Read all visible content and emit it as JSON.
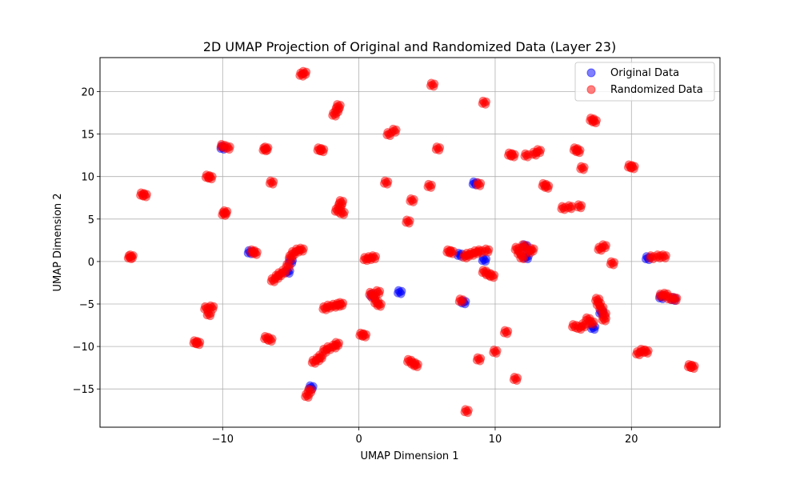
{
  "chart_data": {
    "type": "scatter",
    "title": "2D UMAP Projection of Original and Randomized Data (Layer 23)",
    "xlabel": "UMAP Dimension 1",
    "ylabel": "UMAP Dimension 2",
    "xlim": [
      -19.0,
      26.5
    ],
    "ylim": [
      -19.5,
      24.0
    ],
    "xticks": [
      -10,
      0,
      10,
      20
    ],
    "yticks": [
      -15,
      -10,
      -5,
      0,
      5,
      10,
      15,
      20
    ],
    "xtick_labels": [
      "−10",
      "0",
      "10",
      "20"
    ],
    "ytick_labels": [
      "−15",
      "−10",
      "−5",
      "0",
      "5",
      "10",
      "15",
      "20"
    ],
    "grid": true,
    "legend_position": "top-right",
    "series": [
      {
        "name": "Original Data",
        "color": "#0000ff",
        "alpha": 0.5,
        "points": [
          [
            -10,
            13.4
          ],
          [
            -8,
            1.1
          ],
          [
            -5.2,
            -1.2
          ],
          [
            -5,
            0
          ],
          [
            -3.5,
            -14.8
          ],
          [
            7.4,
            0.8
          ],
          [
            7.7,
            -4.8
          ],
          [
            8.5,
            9.2
          ],
          [
            9.2,
            0.2
          ],
          [
            12.2,
            1.8
          ],
          [
            12.3,
            0.5
          ],
          [
            17.2,
            -7.8
          ],
          [
            17.8,
            -6
          ],
          [
            21.2,
            0.4
          ],
          [
            22.2,
            -4.2
          ],
          [
            23.1,
            -4.4
          ],
          [
            3,
            -3.6
          ],
          [
            1,
            -4
          ]
        ]
      },
      {
        "name": "Randomized Data",
        "color": "#ff0000",
        "alpha": 0.5,
        "points": [
          [
            -16.8,
            0.5
          ],
          [
            -16.7,
            0.6
          ],
          [
            -15.9,
            7.9
          ],
          [
            -15.7,
            7.8
          ],
          [
            -12,
            -9.5
          ],
          [
            -11.8,
            -9.6
          ],
          [
            -11.2,
            -5.5
          ],
          [
            -11,
            -6.2
          ],
          [
            -10.8,
            -5.4
          ],
          [
            -11.1,
            10
          ],
          [
            -10.9,
            9.9
          ],
          [
            -10,
            13.6
          ],
          [
            -9.9,
            5.6
          ],
          [
            -9.8,
            5.8
          ],
          [
            -9.6,
            13.4
          ],
          [
            -7.8,
            1.2
          ],
          [
            -7.6,
            1
          ],
          [
            -6.9,
            13.2
          ],
          [
            -6.8,
            13.3
          ],
          [
            -6.8,
            -9
          ],
          [
            -6.5,
            -9.2
          ],
          [
            -6.4,
            9.3
          ],
          [
            -6.3,
            -2.2
          ],
          [
            -6,
            -1.8
          ],
          [
            -5.8,
            -1.5
          ],
          [
            -5.5,
            -1.2
          ],
          [
            -5.2,
            -0.5
          ],
          [
            -5,
            0.5
          ],
          [
            -4.8,
            1
          ],
          [
            -4.5,
            1.3
          ],
          [
            -4.2,
            1.4
          ],
          [
            -4.2,
            22
          ],
          [
            -4,
            22.2
          ],
          [
            -3.8,
            -15.8
          ],
          [
            -3.6,
            -15.2
          ],
          [
            -3.3,
            -11.8
          ],
          [
            -3,
            -11.5
          ],
          [
            -2.8,
            -11.2
          ],
          [
            -2.9,
            13.2
          ],
          [
            -2.7,
            13.1
          ],
          [
            -2.5,
            -10.5
          ],
          [
            -2.2,
            -10.2
          ],
          [
            -1.8,
            -10
          ],
          [
            -1.6,
            -9.7
          ],
          [
            -2.5,
            -5.5
          ],
          [
            -2.2,
            -5.3
          ],
          [
            -1.8,
            -5.2
          ],
          [
            -1.5,
            -5.1
          ],
          [
            -1.3,
            -5
          ],
          [
            -1.8,
            17.3
          ],
          [
            -1.6,
            17.8
          ],
          [
            -1.5,
            18.3
          ],
          [
            -1.6,
            6
          ],
          [
            -1.4,
            6.5
          ],
          [
            -1.3,
            7
          ],
          [
            -1.2,
            5.7
          ],
          [
            0.2,
            -8.6
          ],
          [
            0.4,
            -8.7
          ],
          [
            0.5,
            0.3
          ],
          [
            0.8,
            0.4
          ],
          [
            1.1,
            0.5
          ],
          [
            0.9,
            -3.8
          ],
          [
            1.1,
            -4.2
          ],
          [
            1.3,
            -4.8
          ],
          [
            1.5,
            -5.1
          ],
          [
            1.4,
            -3.6
          ],
          [
            2,
            9.3
          ],
          [
            2.2,
            15
          ],
          [
            2.6,
            15.4
          ],
          [
            3.6,
            4.7
          ],
          [
            3.7,
            -11.7
          ],
          [
            4,
            -12
          ],
          [
            4.2,
            -12.2
          ],
          [
            3.9,
            7.2
          ],
          [
            5.2,
            8.9
          ],
          [
            5.4,
            20.8
          ],
          [
            5.8,
            13.3
          ],
          [
            6.6,
            1.2
          ],
          [
            6.8,
            1.1
          ],
          [
            7.5,
            -4.6
          ],
          [
            7.8,
            0.6
          ],
          [
            8,
            0.8
          ],
          [
            7.9,
            -17.6
          ],
          [
            8.3,
            0.9
          ],
          [
            8.6,
            1.1
          ],
          [
            8.8,
            -11.5
          ],
          [
            8.8,
            9.1
          ],
          [
            8.9,
            1.2
          ],
          [
            9.2,
            -1.2
          ],
          [
            9.4,
            1.3
          ],
          [
            9.5,
            -1.5
          ],
          [
            9.8,
            -1.7
          ],
          [
            9.2,
            18.7
          ],
          [
            10,
            -10.6
          ],
          [
            10.8,
            -8.3
          ],
          [
            11.1,
            12.6
          ],
          [
            11.3,
            12.5
          ],
          [
            11.5,
            -13.8
          ],
          [
            11.6,
            1.5
          ],
          [
            11.8,
            1
          ],
          [
            12,
            0.5
          ],
          [
            12.1,
            1.8
          ],
          [
            12.3,
            12.5
          ],
          [
            12.5,
            1.2
          ],
          [
            12.7,
            1.4
          ],
          [
            12.9,
            12.7
          ],
          [
            13.2,
            13
          ],
          [
            13.6,
            9
          ],
          [
            13.8,
            8.8
          ],
          [
            15,
            6.3
          ],
          [
            15.5,
            6.4
          ],
          [
            16.2,
            6.5
          ],
          [
            15.8,
            -7.6
          ],
          [
            16.2,
            -7.8
          ],
          [
            16.5,
            -7.5
          ],
          [
            16.8,
            -6.8
          ],
          [
            17.1,
            -7.2
          ],
          [
            16.4,
            11
          ],
          [
            15.9,
            13.2
          ],
          [
            16.1,
            13
          ],
          [
            17.1,
            16.7
          ],
          [
            17.3,
            16.5
          ],
          [
            17.5,
            -4.5
          ],
          [
            17.6,
            -5
          ],
          [
            17.8,
            -5.5
          ],
          [
            17.7,
            1.5
          ],
          [
            18,
            1.8
          ],
          [
            18,
            -6.2
          ],
          [
            18,
            -6.8
          ],
          [
            18.6,
            -0.2
          ],
          [
            19.9,
            11.2
          ],
          [
            20.1,
            11.1
          ],
          [
            20.5,
            -10.8
          ],
          [
            20.8,
            -10.5
          ],
          [
            21.1,
            -10.6
          ],
          [
            21.5,
            0.5
          ],
          [
            22,
            0.6
          ],
          [
            22.4,
            0.6
          ],
          [
            22.2,
            -4
          ],
          [
            22.5,
            -3.9
          ],
          [
            22.8,
            -4.3
          ],
          [
            23.2,
            -4.4
          ],
          [
            24.3,
            -12.3
          ],
          [
            24.5,
            -12.4
          ]
        ]
      }
    ]
  }
}
